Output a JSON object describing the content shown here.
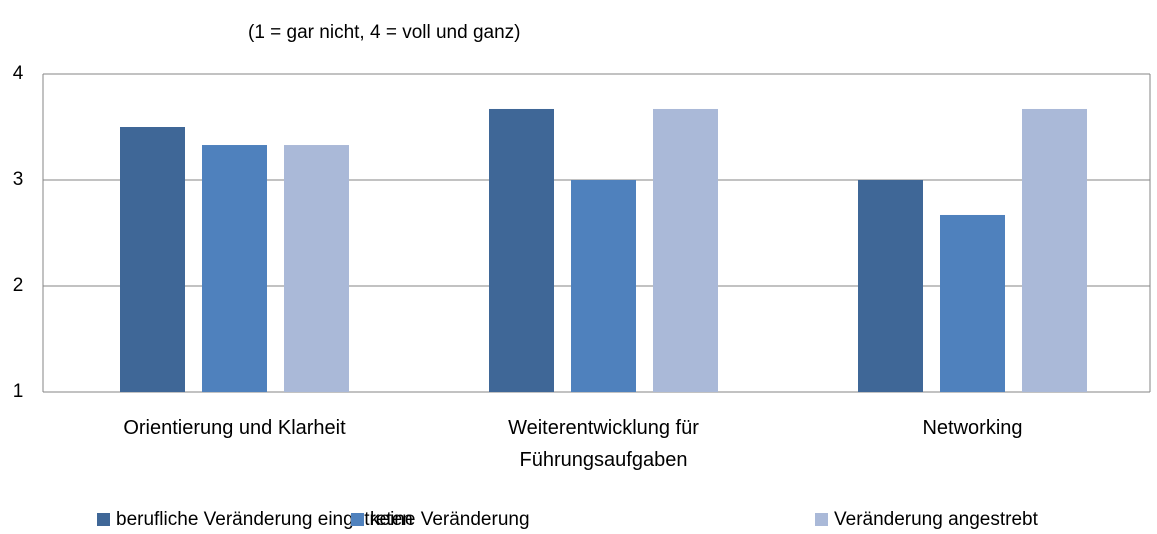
{
  "chart_data": {
    "type": "bar",
    "subtitle": "(1 = gar nicht, 4 = voll und ganz)",
    "categories": [
      "Orientierung und Klarheit",
      "Weiterentwicklung für Führungsaufgaben",
      "Networking"
    ],
    "series": [
      {
        "name": "berufliche Veränderung eingetreten",
        "color": "#3F6797",
        "values": [
          3.5,
          3.67,
          3.0
        ]
      },
      {
        "name": "keine Veränderung",
        "color": "#4F81BD",
        "values": [
          3.33,
          3.0,
          2.67
        ]
      },
      {
        "name": "Veränderung angestrebt",
        "color": "#AAB9D8",
        "values": [
          3.33,
          3.67,
          3.67
        ]
      }
    ],
    "ylim": [
      1,
      4
    ],
    "yticks": [
      1,
      2,
      3,
      4
    ],
    "grid": true,
    "legend": "bottom"
  }
}
